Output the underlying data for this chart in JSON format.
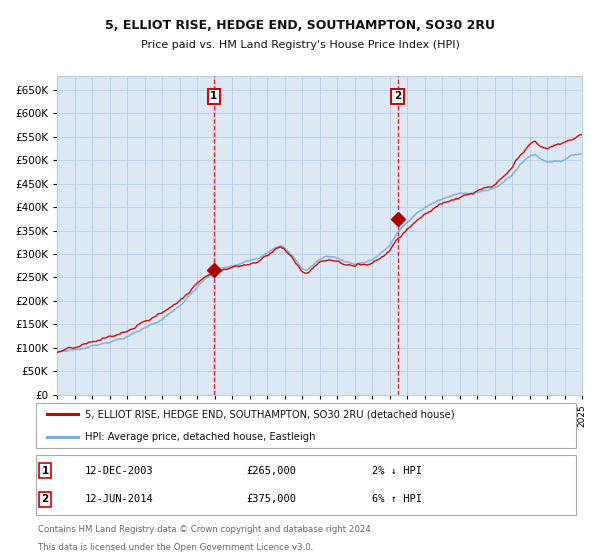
{
  "title1": "5, ELLIOT RISE, HEDGE END, SOUTHAMPTON, SO30 2RU",
  "title2": "Price paid vs. HM Land Registry's House Price Index (HPI)",
  "legend_line1": "5, ELLIOT RISE, HEDGE END, SOUTHAMPTON, SO30 2RU (detached house)",
  "legend_line2": "HPI: Average price, detached house, Eastleigh",
  "marker1_date": "12-DEC-2003",
  "marker1_price": 265000,
  "marker1_note": "2% ↓ HPI",
  "marker2_date": "12-JUN-2014",
  "marker2_price": 375000,
  "marker2_note": "6% ↑ HPI",
  "footer1": "Contains HM Land Registry data © Crown copyright and database right 2024.",
  "footer2": "This data is licensed under the Open Government Licence v3.0.",
  "hpi_color": "#7aadd4",
  "price_color": "#cc0000",
  "marker_color": "#aa0000",
  "bg_color": "#ffffff",
  "plot_bg": "#dce9f5",
  "grid_color": "#b8cfe0",
  "ylim": [
    0,
    680000
  ],
  "yticks": [
    0,
    50000,
    100000,
    150000,
    200000,
    250000,
    300000,
    350000,
    400000,
    450000,
    500000,
    550000,
    600000,
    650000
  ],
  "marker1_x": 2003.96,
  "marker2_x": 2014.46,
  "xmin": 1995,
  "xmax": 2025
}
